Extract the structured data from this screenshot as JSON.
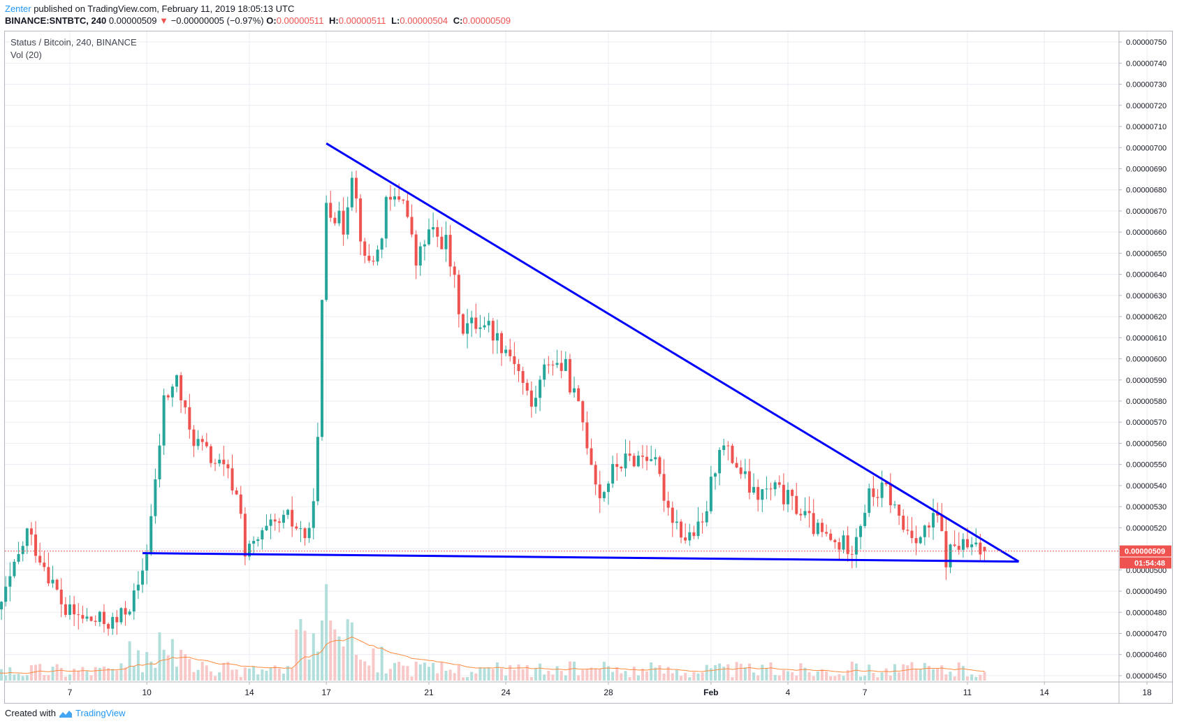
{
  "header": {
    "user": "Zenter",
    "published_text": "published on TradingView.com, February 11, 2019 18:05:13 UTC",
    "symbol": "BINANCE:SNTBTC, 240",
    "price": "0.00000509",
    "change": "−0.00000005 (−0.97%)",
    "open_label": "O:",
    "open": "0.00000511",
    "high_label": "H:",
    "high": "0.00000511",
    "low_label": "L:",
    "low": "0.00000504",
    "close_label": "C:",
    "close": "0.00000509"
  },
  "legend": {
    "title": "Status / Bitcoin, 240, BINANCE",
    "volume": "Vol (20)"
  },
  "footer": {
    "created_with": "Created with",
    "brand": "TradingView"
  },
  "icons": {
    "down_arrow": "triangle-down-icon",
    "logo": "tradingview-logo-icon"
  },
  "colors": {
    "up": "#26a69a",
    "down": "#ef5350",
    "trendline": "#0000ff",
    "price_label_bg": "#ef5350",
    "volume_ma": "#ff8a3d"
  },
  "chart_data": {
    "type": "candlestick",
    "symbol": "SNTBTC",
    "interval": "240",
    "exchange": "BINANCE",
    "x_ticks": [
      "7",
      "10",
      "14",
      "17",
      "21",
      "24",
      "28",
      "Feb",
      "4",
      "7",
      "11",
      "14",
      "18"
    ],
    "y_ticks": [
      "0.00000750",
      "0.00000740",
      "0.00000730",
      "0.00000720",
      "0.00000710",
      "0.00000700",
      "0.00000690",
      "0.00000680",
      "0.00000670",
      "0.00000660",
      "0.00000650",
      "0.00000640",
      "0.00000630",
      "0.00000620",
      "0.00000610",
      "0.00000600",
      "0.00000590",
      "0.00000580",
      "0.00000570",
      "0.00000560",
      "0.00000550",
      "0.00000540",
      "0.00000530",
      "0.00000520",
      "0.00000510",
      "0.00000500",
      "0.00000490",
      "0.00000480",
      "0.00000470",
      "0.00000460",
      "0.00000450"
    ],
    "ylim": [
      4.47e-06,
      7.55e-06
    ],
    "current_price_label": "0.00000509",
    "countdown_label": "01:54:48",
    "price_path": [
      {
        "date": "Jan 4 00:00",
        "price": 4.68e-06
      },
      {
        "date": "Jan 5 00:00",
        "price": 5e-06
      },
      {
        "date": "Jan 5 12:00",
        "price": 5.18e-06
      },
      {
        "date": "Jan 6 04:00",
        "price": 5.03e-06
      },
      {
        "date": "Jan 7 00:00",
        "price": 4.8e-06
      },
      {
        "date": "Jan 8 00:00",
        "price": 4.76e-06
      },
      {
        "date": "Jan 9 00:00",
        "price": 4.75e-06
      },
      {
        "date": "Jan 9 20:00",
        "price": 4.9e-06
      },
      {
        "date": "Jan 10 04:00",
        "price": 5.1e-06
      },
      {
        "date": "Jan 10 12:00",
        "price": 5.4e-06
      },
      {
        "date": "Jan 10 20:00",
        "price": 5.8e-06
      },
      {
        "date": "Jan 11 08:00",
        "price": 5.9e-06
      },
      {
        "date": "Jan 11 20:00",
        "price": 5.65e-06
      },
      {
        "date": "Jan 12 12:00",
        "price": 5.55e-06
      },
      {
        "date": "Jan 13 08:00",
        "price": 5.45e-06
      },
      {
        "date": "Jan 13 20:00",
        "price": 5.3e-06
      },
      {
        "date": "Jan 14 00:00",
        "price": 5.07e-06
      },
      {
        "date": "Jan 14 20:00",
        "price": 5.18e-06
      },
      {
        "date": "Jan 15 16:00",
        "price": 5.24e-06
      },
      {
        "date": "Jan 16 12:00",
        "price": 5.15e-06
      },
      {
        "date": "Jan 16 20:00",
        "price": 5.6e-06
      },
      {
        "date": "Jan 17 00:00",
        "price": 6.25e-06
      },
      {
        "date": "Jan 17 04:00",
        "price": 6.75e-06
      },
      {
        "date": "Jan 17 20:00",
        "price": 6.62e-06
      },
      {
        "date": "Jan 18 04:00",
        "price": 6.9e-06
      },
      {
        "date": "Jan 18 16:00",
        "price": 6.45e-06
      },
      {
        "date": "Jan 19 04:00",
        "price": 6.5e-06
      },
      {
        "date": "Jan 19 12:00",
        "price": 6.72e-06
      },
      {
        "date": "Jan 20 04:00",
        "price": 6.78e-06
      },
      {
        "date": "Jan 20 16:00",
        "price": 6.45e-06
      },
      {
        "date": "Jan 21 04:00",
        "price": 6.6e-06
      },
      {
        "date": "Jan 21 20:00",
        "price": 6.55e-06
      },
      {
        "date": "Jan 22 12:00",
        "price": 6.15e-06
      },
      {
        "date": "Jan 23 08:00",
        "price": 6.18e-06
      },
      {
        "date": "Jan 23 20:00",
        "price": 6.1e-06
      },
      {
        "date": "Jan 24 12:00",
        "price": 6e-06
      },
      {
        "date": "Jan 25 04:00",
        "price": 5.77e-06
      },
      {
        "date": "Jan 25 20:00",
        "price": 6e-06
      },
      {
        "date": "Jan 26 12:00",
        "price": 5.95e-06
      },
      {
        "date": "Jan 27 04:00",
        "price": 5.7e-06
      },
      {
        "date": "Jan 27 20:00",
        "price": 5.35e-06
      },
      {
        "date": "Jan 28 12:00",
        "price": 5.5e-06
      },
      {
        "date": "Jan 29 04:00",
        "price": 5.53e-06
      },
      {
        "date": "Jan 29 20:00",
        "price": 5.55e-06
      },
      {
        "date": "Jan 30 12:00",
        "price": 5.3e-06
      },
      {
        "date": "Jan 31 04:00",
        "price": 5.15e-06
      },
      {
        "date": "Jan 31 20:00",
        "price": 5.2e-06
      },
      {
        "date": "Feb 1 12:00",
        "price": 5.6e-06
      },
      {
        "date": "Feb 2 04:00",
        "price": 5.5e-06
      },
      {
        "date": "Feb 2 20:00",
        "price": 5.35e-06
      },
      {
        "date": "Feb 3 16:00",
        "price": 5.38e-06
      },
      {
        "date": "Feb 4 12:00",
        "price": 5.3e-06
      },
      {
        "date": "Feb 5 08:00",
        "price": 5.18e-06
      },
      {
        "date": "Feb 6 00:00",
        "price": 5.12e-06
      },
      {
        "date": "Feb 6 16:00",
        "price": 5.12e-06
      },
      {
        "date": "Feb 7 08:00",
        "price": 5.35e-06
      },
      {
        "date": "Feb 8 00:00",
        "price": 5.38e-06
      },
      {
        "date": "Feb 8 16:00",
        "price": 5.2e-06
      },
      {
        "date": "Feb 9 08:00",
        "price": 5.16e-06
      },
      {
        "date": "Feb 10 00:00",
        "price": 5.25e-06
      },
      {
        "date": "Feb 10 08:00",
        "price": 5.05e-06
      },
      {
        "date": "Feb 10 16:00",
        "price": 5.12e-06
      },
      {
        "date": "Feb 11 16:00",
        "price": 5.09e-06
      }
    ],
    "trendlines": [
      {
        "name": "descending-resistance",
        "from": {
          "date": "Jan 17 00:00",
          "price": 7.02e-06
        },
        "to": {
          "date": "Feb 13 00:00",
          "price": 5.04e-06
        }
      },
      {
        "name": "support",
        "from": {
          "date": "Jan 9 20:00",
          "price": 5.08e-06
        },
        "to": {
          "date": "Feb 13 00:00",
          "price": 5.04e-06
        }
      }
    ],
    "volume": {
      "label": "Vol (20)",
      "relative_peaks": [
        {
          "date": "Jan 17 00:00",
          "level": 0.6
        },
        {
          "date": "Jan 10 12:00",
          "level": 0.3
        },
        {
          "date": "Jan 18 20:00",
          "level": 0.2
        }
      ]
    },
    "grid": true
  }
}
